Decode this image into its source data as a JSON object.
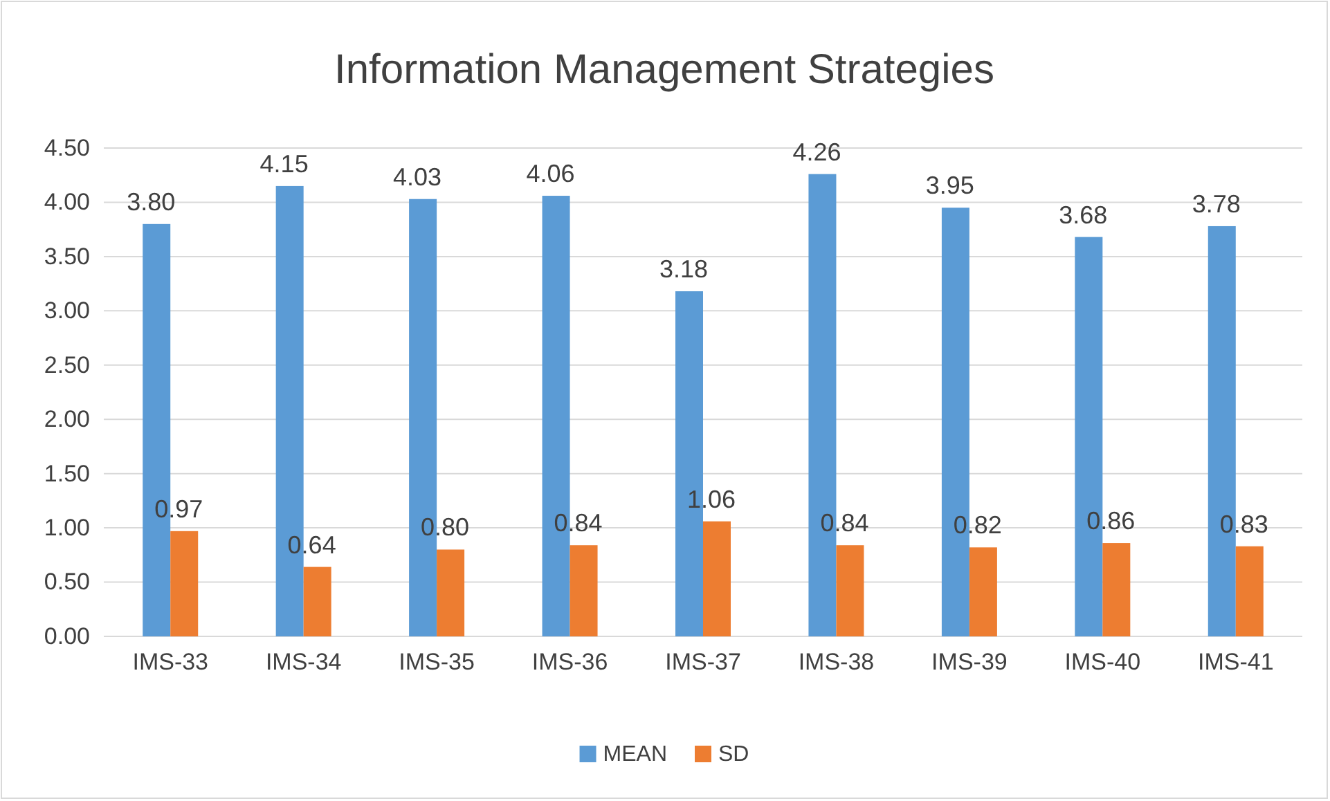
{
  "chart_data": {
    "type": "bar",
    "title": "Information Management Strategies",
    "categories": [
      "IMS-33",
      "IMS-34",
      "IMS-35",
      "IMS-36",
      "IMS-37",
      "IMS-38",
      "IMS-39",
      "IMS-40",
      "IMS-41"
    ],
    "series": [
      {
        "name": "MEAN",
        "color": "#5b9bd5",
        "values": [
          3.8,
          4.15,
          4.03,
          4.06,
          3.18,
          4.26,
          3.95,
          3.68,
          3.78
        ],
        "value_labels": [
          "3.80",
          "4.15",
          "4.03",
          "4.06",
          "3.18",
          "4.26",
          "3.95",
          "3.68",
          "3.78"
        ]
      },
      {
        "name": "SD",
        "color": "#ed7d31",
        "values": [
          0.97,
          0.64,
          0.8,
          0.84,
          1.06,
          0.84,
          0.82,
          0.86,
          0.83
        ],
        "value_labels": [
          "0.97",
          "0.64",
          "0.80",
          "0.84",
          "1.06",
          "0.84",
          "0.82",
          "0.86",
          "0.83"
        ]
      }
    ],
    "ylim": [
      0,
      4.5
    ],
    "yticks": [
      {
        "value": 0,
        "label": "0.00"
      },
      {
        "value": 0.5,
        "label": "0.50"
      },
      {
        "value": 1,
        "label": "1.00"
      },
      {
        "value": 1.5,
        "label": "1.50"
      },
      {
        "value": 2,
        "label": "2.00"
      },
      {
        "value": 2.5,
        "label": "2.50"
      },
      {
        "value": 3,
        "label": "3.00"
      },
      {
        "value": 3.5,
        "label": "3.50"
      },
      {
        "value": 4,
        "label": "4.00"
      },
      {
        "value": 4.5,
        "label": "4.50"
      }
    ],
    "grid": "y",
    "legend": "bottom"
  }
}
